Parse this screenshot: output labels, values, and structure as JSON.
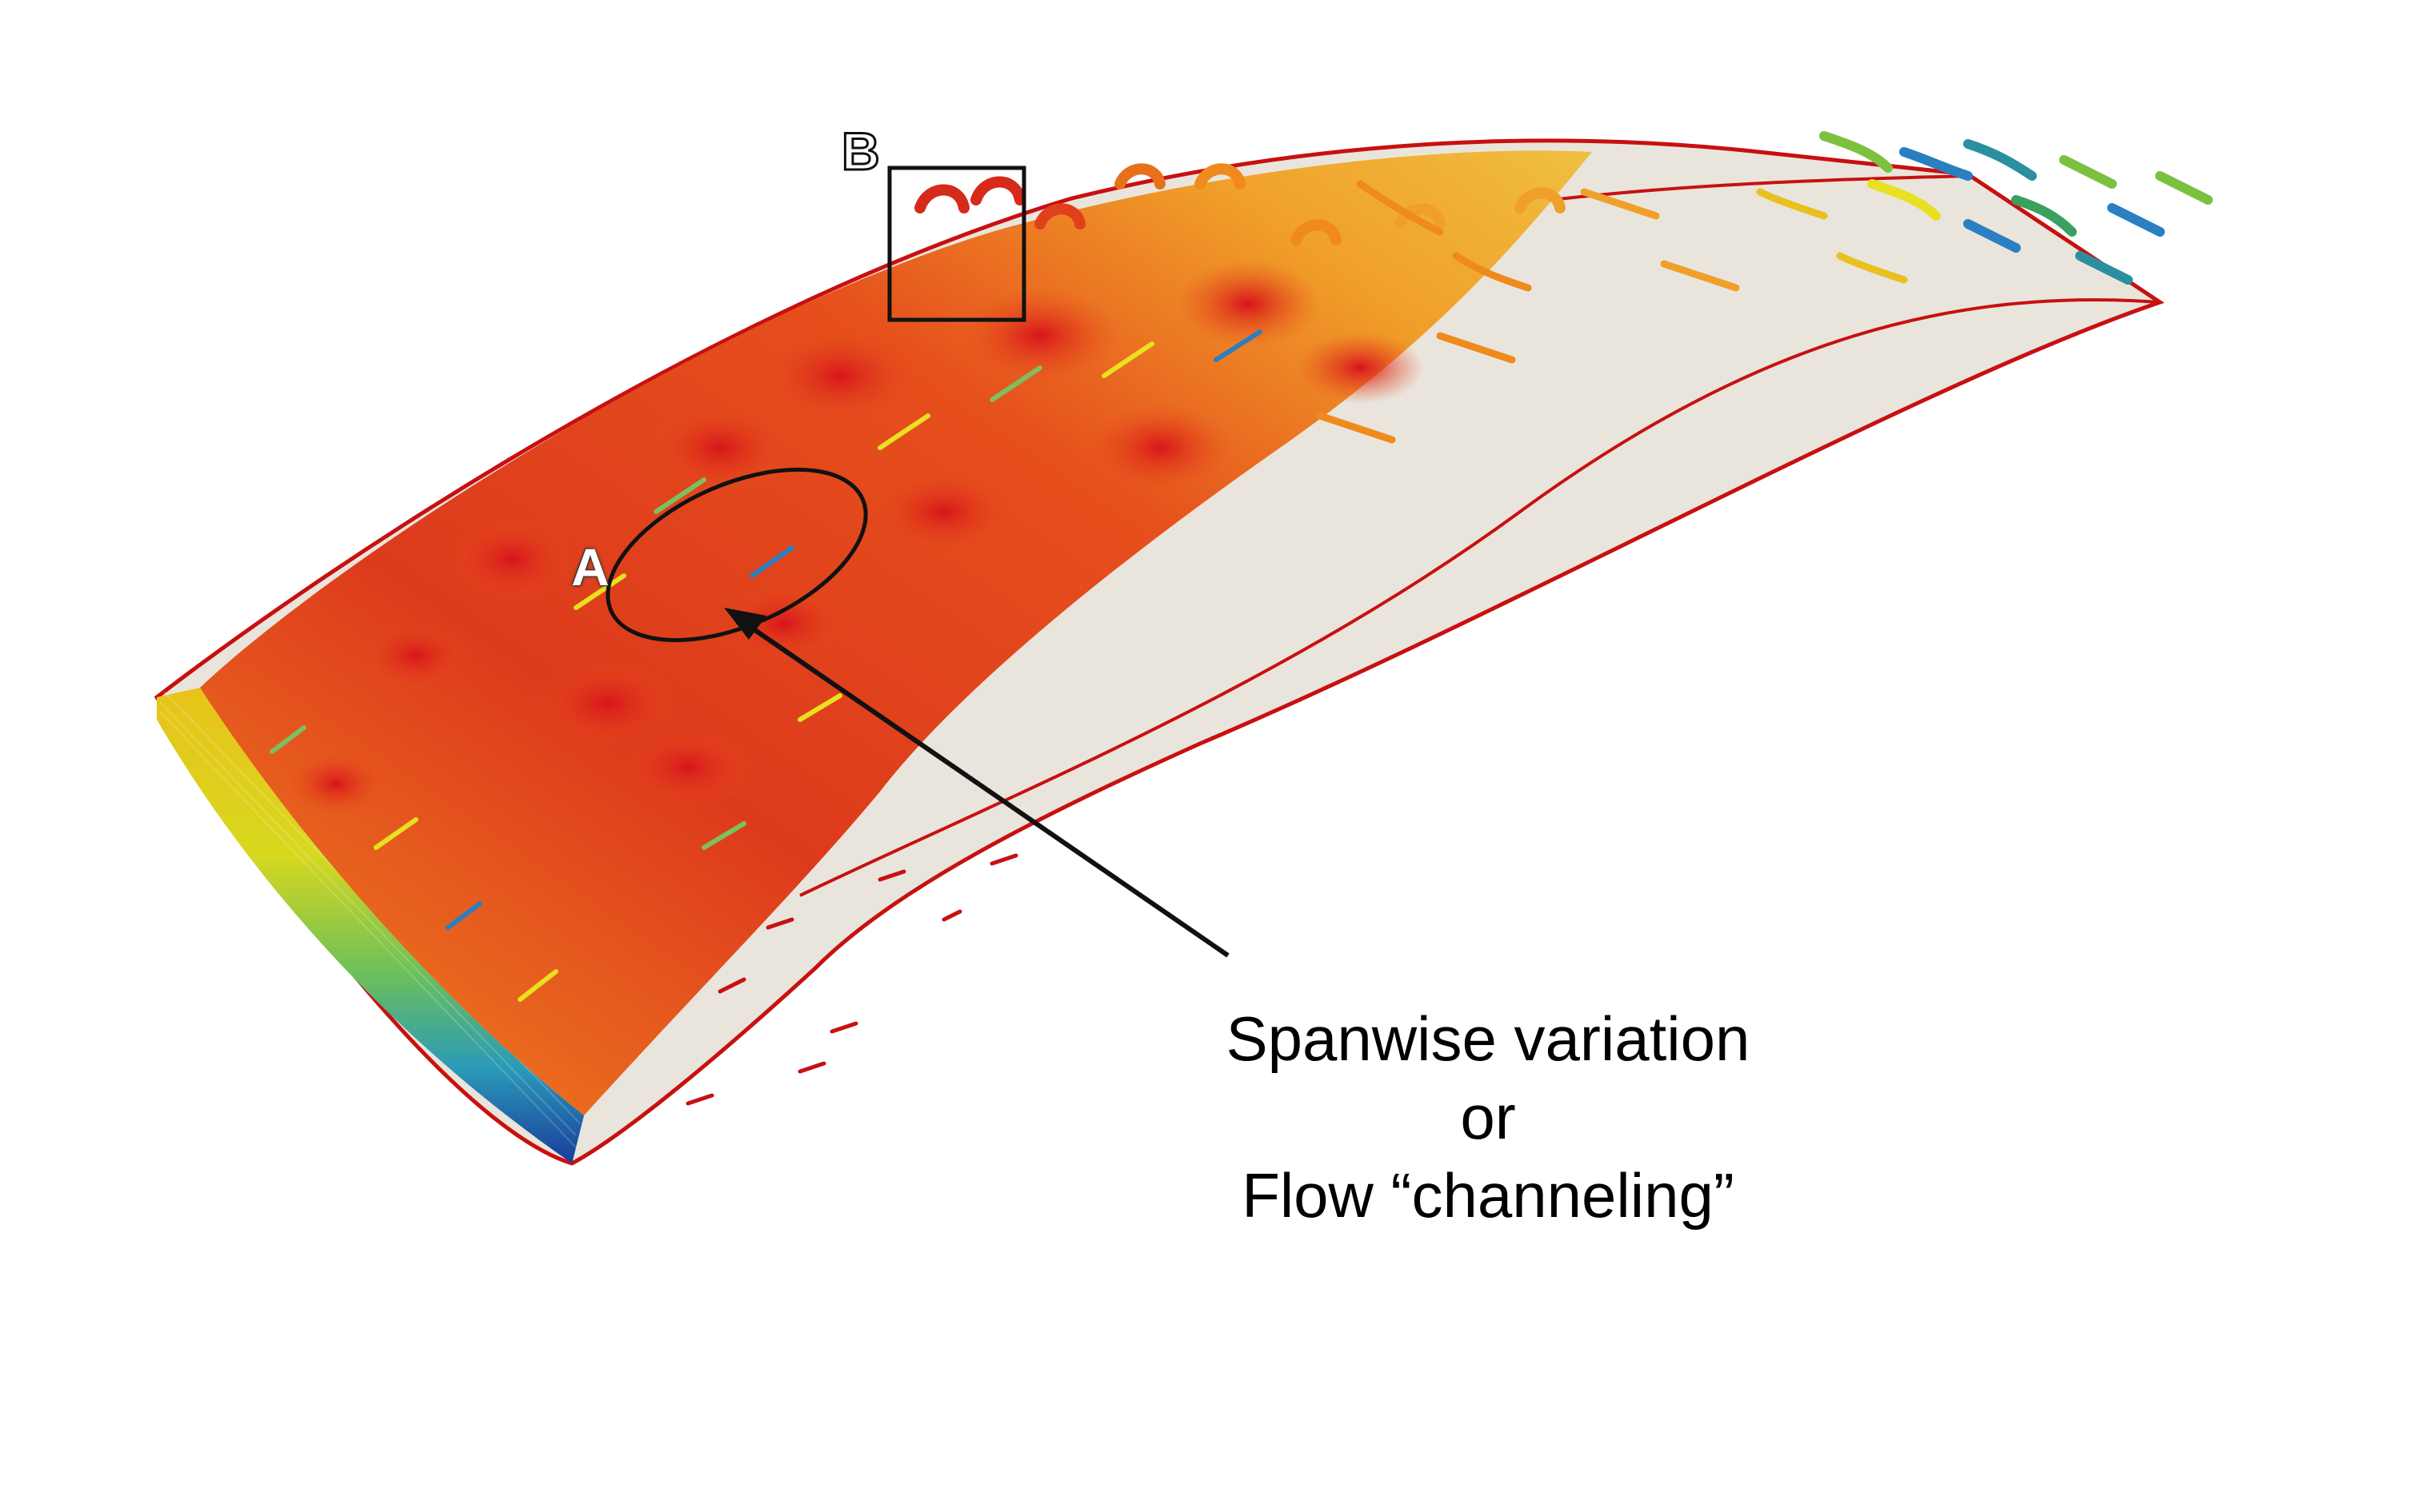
{
  "annotations": {
    "region_a": "A",
    "region_b": "B",
    "caption": {
      "line1": "Spanwise variation",
      "line2": "or",
      "line3": "Flow “channeling”"
    }
  },
  "colors": {
    "background": "#ffffff",
    "surface": "#e9e5dc",
    "outline": "#c81010",
    "vortex_high": "#d62a1a",
    "vortex_mid": "#f08a1c",
    "vortex_low": "#e8e020",
    "vortex_cool": "#2a7fc0",
    "annotation": "#111111"
  }
}
